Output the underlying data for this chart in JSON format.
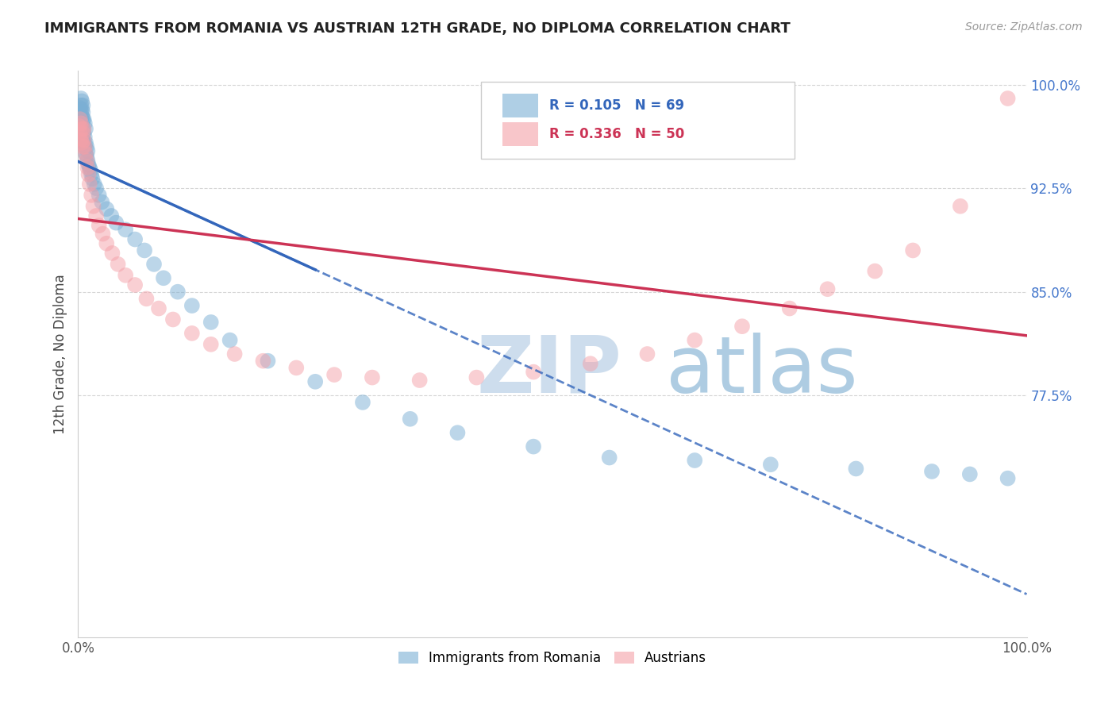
{
  "title": "IMMIGRANTS FROM ROMANIA VS AUSTRIAN 12TH GRADE, NO DIPLOMA CORRELATION CHART",
  "source_text": "Source: ZipAtlas.com",
  "ylabel": "12th Grade, No Diploma",
  "xlim": [
    0.0,
    1.0
  ],
  "ylim": [
    0.6,
    1.01
  ],
  "xtick_labels": [
    "0.0%",
    "100.0%"
  ],
  "xtick_vals": [
    0.0,
    1.0
  ],
  "ytick_labels": [
    "77.5%",
    "85.0%",
    "92.5%",
    "100.0%"
  ],
  "ytick_vals": [
    0.775,
    0.85,
    0.925,
    1.0
  ],
  "blue_R": "0.105",
  "blue_N": "69",
  "pink_R": "0.336",
  "pink_N": "50",
  "blue_color": "#7BAFD4",
  "pink_color": "#F4A0A8",
  "blue_line_color": "#3366BB",
  "pink_line_color": "#CC3355",
  "watermark_zip": "ZIP",
  "watermark_atlas": "atlas",
  "watermark_color_zip": "#C5D8EA",
  "watermark_color_atlas": "#A0C4DD",
  "legend_label_blue": "Immigrants from Romania",
  "legend_label_pink": "Austrians",
  "blue_x": [
    0.001,
    0.001,
    0.002,
    0.002,
    0.002,
    0.002,
    0.003,
    0.003,
    0.003,
    0.003,
    0.003,
    0.003,
    0.004,
    0.004,
    0.004,
    0.004,
    0.004,
    0.005,
    0.005,
    0.005,
    0.005,
    0.005,
    0.006,
    0.006,
    0.006,
    0.007,
    0.007,
    0.007,
    0.008,
    0.008,
    0.008,
    0.009,
    0.009,
    0.01,
    0.01,
    0.011,
    0.012,
    0.013,
    0.014,
    0.015,
    0.017,
    0.019,
    0.022,
    0.025,
    0.03,
    0.035,
    0.04,
    0.05,
    0.06,
    0.07,
    0.08,
    0.09,
    0.105,
    0.12,
    0.14,
    0.16,
    0.2,
    0.25,
    0.3,
    0.35,
    0.4,
    0.48,
    0.56,
    0.65,
    0.73,
    0.82,
    0.9,
    0.94,
    0.98
  ],
  "blue_y": [
    0.97,
    0.975,
    0.965,
    0.972,
    0.978,
    0.983,
    0.968,
    0.974,
    0.98,
    0.985,
    0.96,
    0.99,
    0.962,
    0.97,
    0.977,
    0.982,
    0.988,
    0.96,
    0.968,
    0.975,
    0.98,
    0.985,
    0.958,
    0.965,
    0.975,
    0.955,
    0.962,
    0.972,
    0.95,
    0.958,
    0.968,
    0.948,
    0.955,
    0.945,
    0.952,
    0.942,
    0.94,
    0.938,
    0.935,
    0.932,
    0.928,
    0.925,
    0.92,
    0.915,
    0.91,
    0.905,
    0.9,
    0.895,
    0.888,
    0.88,
    0.87,
    0.86,
    0.85,
    0.84,
    0.828,
    0.815,
    0.8,
    0.785,
    0.77,
    0.758,
    0.748,
    0.738,
    0.73,
    0.728,
    0.725,
    0.722,
    0.72,
    0.718,
    0.715
  ],
  "pink_x": [
    0.001,
    0.002,
    0.002,
    0.003,
    0.003,
    0.004,
    0.004,
    0.005,
    0.005,
    0.006,
    0.006,
    0.007,
    0.008,
    0.009,
    0.01,
    0.011,
    0.012,
    0.014,
    0.016,
    0.019,
    0.022,
    0.026,
    0.03,
    0.036,
    0.042,
    0.05,
    0.06,
    0.072,
    0.085,
    0.1,
    0.12,
    0.14,
    0.165,
    0.195,
    0.23,
    0.27,
    0.31,
    0.36,
    0.42,
    0.48,
    0.54,
    0.6,
    0.65,
    0.7,
    0.75,
    0.79,
    0.84,
    0.88,
    0.93,
    0.98
  ],
  "pink_y": [
    0.97,
    0.965,
    0.975,
    0.96,
    0.972,
    0.958,
    0.968,
    0.955,
    0.965,
    0.96,
    0.968,
    0.955,
    0.95,
    0.945,
    0.94,
    0.935,
    0.928,
    0.92,
    0.912,
    0.905,
    0.898,
    0.892,
    0.885,
    0.878,
    0.87,
    0.862,
    0.855,
    0.845,
    0.838,
    0.83,
    0.82,
    0.812,
    0.805,
    0.8,
    0.795,
    0.79,
    0.788,
    0.786,
    0.788,
    0.792,
    0.798,
    0.805,
    0.815,
    0.825,
    0.838,
    0.852,
    0.865,
    0.88,
    0.912,
    0.99
  ]
}
